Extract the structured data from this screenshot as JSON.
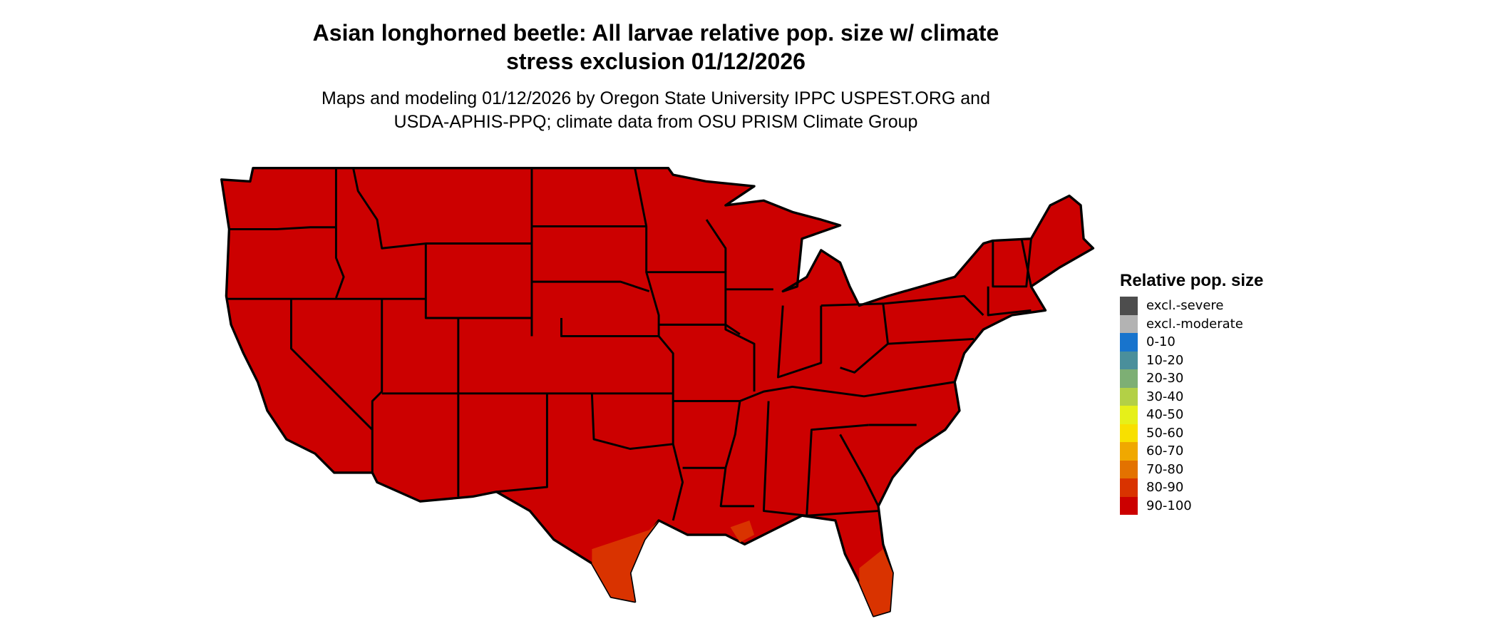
{
  "title": {
    "line1": "Asian longhorned beetle: All larvae relative pop. size w/ climate",
    "line2": "stress exclusion 01/12/2026"
  },
  "subtitle": {
    "line1": "Maps and modeling 01/12/2026 by Oregon State University IPPC USPEST.ORG and",
    "line2": "USDA-APHIS-PPQ; climate data from OSU PRISM Climate Group"
  },
  "map": {
    "region": "Contiguous United States",
    "dominant_class": "90-100",
    "secondary_class": "80-90",
    "secondary_areas": [
      "South Texas",
      "South Florida",
      "Louisiana coast"
    ],
    "fill_dominant": "#CC0000",
    "fill_secondary": "#D93300",
    "border_color": "#000000"
  },
  "legend": {
    "title": "Relative pop. size",
    "items": [
      {
        "label": "excl.-severe",
        "color": "#4D4D4D"
      },
      {
        "label": "excl.-moderate",
        "color": "#B3B3B3"
      },
      {
        "label": "0-10",
        "color": "#1874CD"
      },
      {
        "label": "10-20",
        "color": "#4A8F9B"
      },
      {
        "label": "20-30",
        "color": "#7DAF74"
      },
      {
        "label": "30-40",
        "color": "#B3D046"
      },
      {
        "label": "40-50",
        "color": "#E6F019"
      },
      {
        "label": "50-60",
        "color": "#F8E000"
      },
      {
        "label": "60-70",
        "color": "#F0A800"
      },
      {
        "label": "70-80",
        "color": "#E37200"
      },
      {
        "label": "80-90",
        "color": "#D93300"
      },
      {
        "label": "90-100",
        "color": "#CC0000"
      }
    ]
  }
}
